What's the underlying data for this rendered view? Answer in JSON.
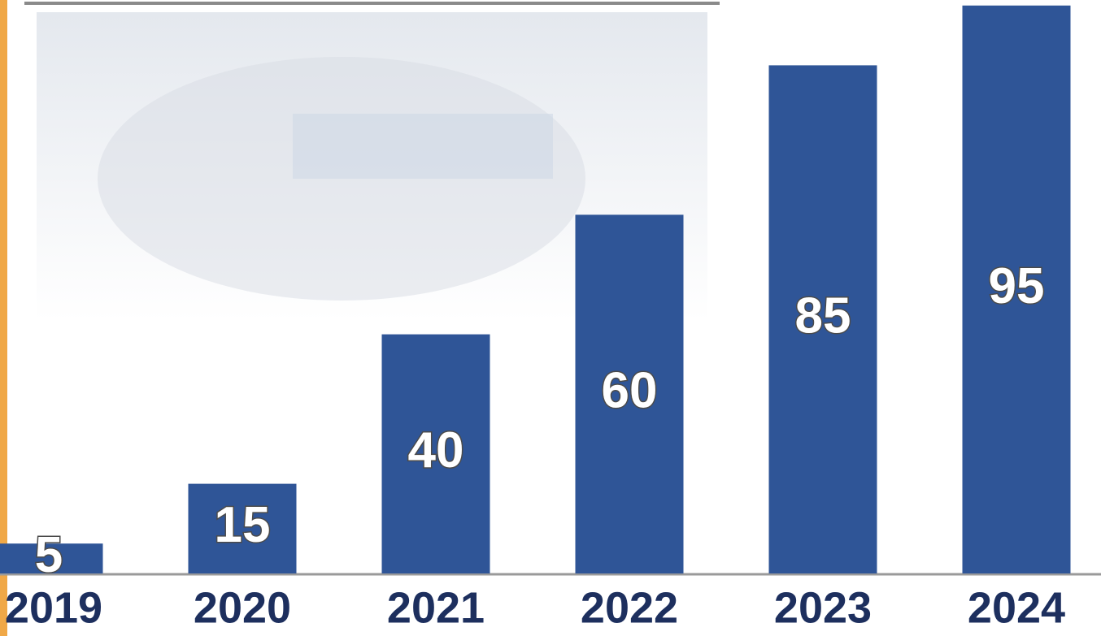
{
  "chart_data": {
    "type": "bar",
    "categories": [
      "2019",
      "2020",
      "2021",
      "2022",
      "2023",
      "2024"
    ],
    "values": [
      5,
      15,
      40,
      60,
      85,
      95
    ],
    "color": "#2f5597"
  }
}
